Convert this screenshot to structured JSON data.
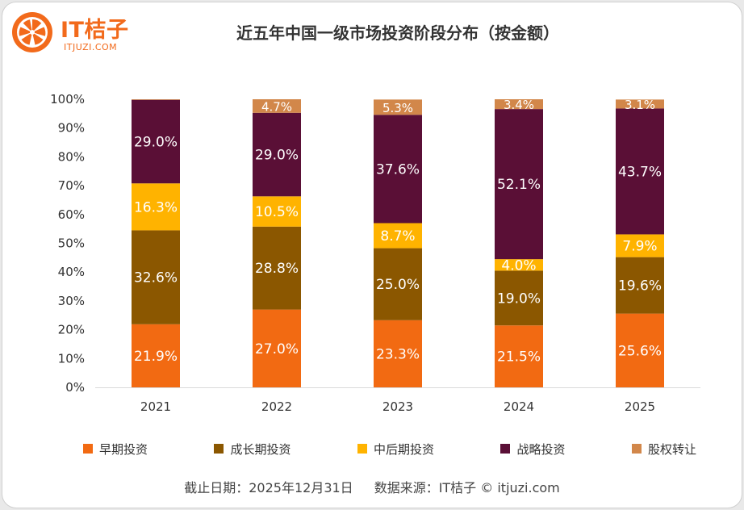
{
  "brand": {
    "name": "IT桔子",
    "site": "ITJUZI.COM"
  },
  "chart_data": {
    "type": "bar",
    "stacked": true,
    "title": "近五年中国一级市场投资阶段分布（按金额）",
    "categories": [
      "2021",
      "2022",
      "2023",
      "2024",
      "2025"
    ],
    "series": [
      {
        "name": "早期投资",
        "color": "#f26a12",
        "values": [
          21.9,
          27.0,
          23.3,
          21.5,
          25.6
        ]
      },
      {
        "name": "成长期投资",
        "color": "#8b5700",
        "values": [
          32.6,
          28.8,
          25.0,
          19.0,
          19.6
        ]
      },
      {
        "name": "中后期投资",
        "color": "#ffb300",
        "values": [
          16.3,
          10.5,
          8.7,
          4.0,
          7.9
        ]
      },
      {
        "name": "战略投资",
        "color": "#5a0f36",
        "values": [
          29.0,
          29.0,
          37.6,
          52.1,
          43.7
        ]
      },
      {
        "name": "股权转让",
        "color": "#d2874a",
        "values": [
          0.2,
          4.7,
          5.3,
          3.4,
          3.1
        ]
      }
    ],
    "value_labels": [
      [
        "21.9%",
        "32.6%",
        "16.3%",
        "29.0%",
        ""
      ],
      [
        "27.0%",
        "28.8%",
        "10.5%",
        "29.0%",
        "4.7%"
      ],
      [
        "23.3%",
        "25.0%",
        "8.7%",
        "37.6%",
        "5.3%"
      ],
      [
        "21.5%",
        "19.0%",
        "4.0%",
        "52.1%",
        "3.4%"
      ],
      [
        "25.6%",
        "19.6%",
        "7.9%",
        "43.7%",
        "3.1%"
      ]
    ],
    "y_ticks": [
      "0%",
      "10%",
      "20%",
      "30%",
      "40%",
      "50%",
      "60%",
      "70%",
      "80%",
      "90%",
      "100%"
    ],
    "ylim": [
      0,
      100
    ],
    "xlabel": "",
    "ylabel": "",
    "legend_position": "bottom"
  },
  "footer": {
    "date": "截止日期：2025年12月31日",
    "source": "数据来源：IT桔子 © itjuzi.com"
  }
}
